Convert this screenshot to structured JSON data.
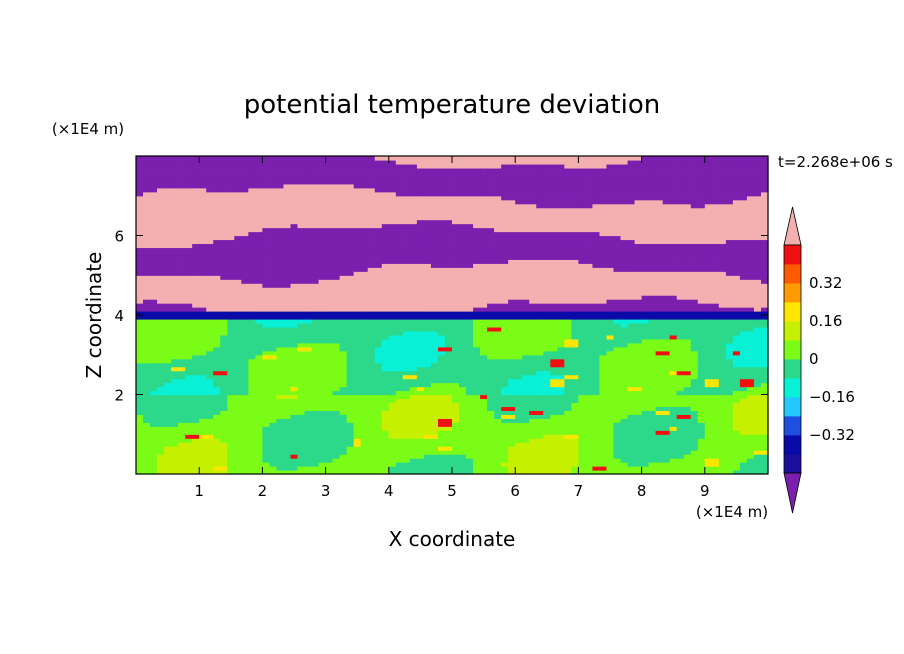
{
  "chart_data": {
    "type": "heatmap",
    "title": "potential temperature deviation",
    "xlabel": "X coordinate",
    "ylabel": "Z coordinate",
    "x_unit": "(×1E4 m)",
    "y_unit": "(×1E4 m)",
    "time_label": "t=2.268e+06 s",
    "xlim": [
      0,
      10
    ],
    "ylim": [
      0,
      8
    ],
    "x_ticks": [
      1,
      2,
      3,
      4,
      5,
      6,
      7,
      8,
      9
    ],
    "y_ticks": [
      2,
      4,
      6
    ],
    "colorbar": {
      "levels": [
        -0.48,
        -0.4,
        -0.32,
        -0.24,
        -0.16,
        -0.08,
        0,
        0.08,
        0.16,
        0.24,
        0.32,
        0.4,
        0.48
      ],
      "colors": [
        "#7a1fae",
        "#1c0f9c",
        "#0a0aa8",
        "#1f4fe0",
        "#22c8ff",
        "#08f0d6",
        "#2cd98a",
        "#7bfc16",
        "#c6f000",
        "#ffe600",
        "#ff9a00",
        "#ff5a00",
        "#f01010",
        "#f4b0b0"
      ],
      "tick_labels": [
        "0.32",
        "0.16",
        "0",
        "−0.16",
        "−0.32"
      ],
      "tick_values": [
        0.32,
        0.16,
        0,
        -0.16,
        -0.32
      ]
    },
    "fields": {
      "upper_layer": {
        "z_range": [
          4.0,
          8.0
        ],
        "bands_values": [
          -0.48,
          0.48
        ],
        "description_values": "alternating strong anomalies"
      },
      "interface": {
        "z": 4.0,
        "value": -0.4
      },
      "lower_layer": {
        "z_range": [
          0,
          4.0
        ],
        "dominant_values": [
          -0.04,
          0.08
        ]
      }
    }
  }
}
